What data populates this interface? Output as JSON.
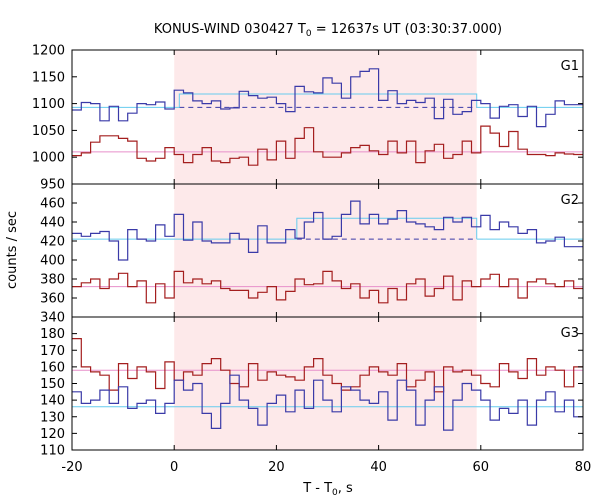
{
  "chart_data": {
    "type": "line",
    "title_main": "KONUS-WIND 030427 T",
    "title_sub": "0",
    "title_rest": " = 12637s UT (03:30:37.000)",
    "xlabel_main": "T - T",
    "xlabel_sub": "0",
    "xlabel_rest": ", s",
    "ylabel": "counts / sec",
    "x_range": [
      -20,
      80
    ],
    "x_ticks": [
      "-20",
      "0",
      "20",
      "40",
      "60",
      "80"
    ],
    "shaded_interval": [
      0,
      59.2
    ],
    "shade_color": "#fde9ea",
    "colors": {
      "blue": "#3a3aa8",
      "red": "#a41e1e",
      "pink": "#e78fca",
      "cyan": "#66ccee"
    },
    "panels": [
      {
        "name": "G1",
        "y_range": [
          950,
          1200
        ],
        "y_ticks": [
          "950",
          "1000",
          "1050",
          "1100",
          "1150",
          "1200"
        ],
        "blue_series": [
          1088,
          1102,
          1100,
          1068,
          1095,
          1068,
          1082,
          1100,
          1098,
          1103,
          1090,
          1125,
          1120,
          1105,
          1100,
          1105,
          1090,
          1092,
          1123,
          1115,
          1110,
          1112,
          1100,
          1085,
          1132,
          1122,
          1120,
          1148,
          1138,
          1110,
          1150,
          1160,
          1165,
          1106,
          1124,
          1100,
          1106,
          1102,
          1110,
          1072,
          1108,
          1080,
          1085,
          1106,
          1100,
          1073,
          1095,
          1098,
          1076,
          1095,
          1057,
          1080,
          1105,
          1098,
          1098
        ],
        "red_series": [
          1003,
          1008,
          1028,
          1040,
          1040,
          1035,
          1030,
          998,
          993,
          998,
          1018,
          1005,
          990,
          1005,
          1018,
          993,
          990,
          998,
          1000,
          985,
          1015,
          995,
          1030,
          998,
          1035,
          1055,
          1010,
          1000,
          1000,
          1008,
          1018,
          1022,
          1012,
          1005,
          1030,
          1008,
          1030,
          990,
          1012,
          1024,
          998,
          1005,
          1030,
          1008,
          1058,
          1045,
          1020,
          1048,
          1015,
          1005,
          1005,
          1003,
          1008,
          1006,
          1005
        ],
        "blue_bg": 1093,
        "red_bg": 1010,
        "blue_fit_level": 1118,
        "blue_fit_range": [
          1,
          59.2
        ]
      },
      {
        "name": "G2",
        "y_range": [
          340,
          480
        ],
        "y_ticks": [
          "340",
          "360",
          "380",
          "400",
          "420",
          "440",
          "460"
        ],
        "blue_series": [
          428,
          425,
          428,
          430,
          420,
          400,
          432,
          422,
          420,
          437,
          425,
          448,
          421,
          440,
          420,
          418,
          418,
          428,
          422,
          408,
          436,
          418,
          418,
          432,
          423,
          440,
          450,
          422,
          425,
          448,
          462,
          438,
          448,
          438,
          443,
          452,
          440,
          438,
          435,
          432,
          445,
          440,
          445,
          435,
          447,
          432,
          440,
          435,
          428,
          432,
          418,
          420,
          424,
          414,
          414
        ],
        "red_series": [
          372,
          376,
          380,
          370,
          380,
          386,
          372,
          378,
          355,
          375,
          360,
          388,
          376,
          380,
          375,
          378,
          370,
          368,
          368,
          360,
          366,
          372,
          358,
          367,
          380,
          374,
          375,
          388,
          378,
          370,
          375,
          360,
          368,
          355,
          370,
          358,
          375,
          380,
          362,
          370,
          383,
          358,
          378,
          372,
          380,
          385,
          372,
          380,
          360,
          377,
          380,
          375,
          372,
          378,
          370
        ],
        "blue_bg": 422,
        "red_bg": 372,
        "blue_fit_level": 444,
        "blue_fit_range": [
          24,
          59.2
        ]
      },
      {
        "name": "G3",
        "y_range": [
          110,
          190
        ],
        "y_ticks": [
          "110",
          "120",
          "130",
          "140",
          "150",
          "160",
          "170",
          "180"
        ],
        "blue_series": [
          145,
          138,
          140,
          146,
          138,
          148,
          135,
          138,
          140,
          132,
          138,
          152,
          146,
          150,
          132,
          123,
          138,
          155,
          140,
          135,
          125,
          138,
          143,
          133,
          146,
          135,
          152,
          140,
          133,
          148,
          146,
          140,
          138,
          145,
          128,
          152,
          146,
          125,
          140,
          148,
          122,
          140,
          150,
          146,
          140,
          128,
          135,
          132,
          140,
          125,
          140,
          145,
          133,
          140,
          130
        ],
        "red_series": [
          177,
          160,
          157,
          155,
          146,
          162,
          153,
          160,
          157,
          147,
          163,
          152,
          157,
          155,
          162,
          165,
          158,
          150,
          148,
          162,
          152,
          157,
          155,
          154,
          152,
          160,
          165,
          155,
          150,
          146,
          148,
          155,
          160,
          157,
          155,
          162,
          148,
          152,
          157,
          145,
          160,
          157,
          158,
          155,
          150,
          148,
          162,
          157,
          153,
          165,
          155,
          160,
          158,
          148,
          160
        ],
        "blue_bg": 136,
        "red_bg": 158,
        "blue_fit_level": 136,
        "blue_fit_range": [
          0,
          0
        ]
      }
    ]
  }
}
